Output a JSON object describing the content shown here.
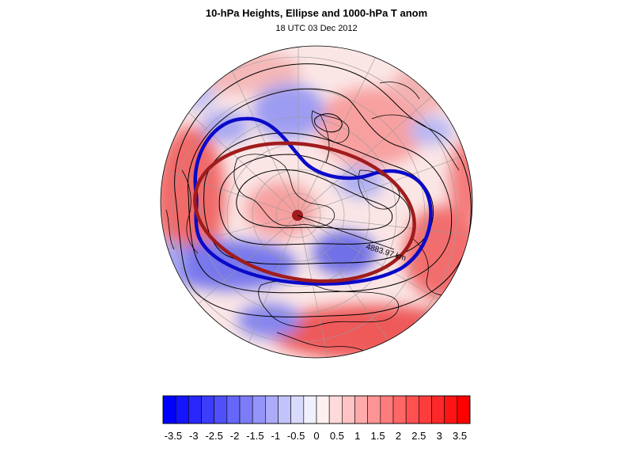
{
  "title": "10-hPa Heights, Ellipse and 1000-hPa T anom",
  "subtitle": "18 UTC 03 Dec 2012",
  "map": {
    "projection": "north-polar-stereographic",
    "ellipse_label": "4883.97 km",
    "colors": {
      "highlighted_contour": "#0a0ac8",
      "ellipse": "#a01c1c",
      "ellipse_center": "#a01c1c",
      "contour": "#000000",
      "coastline": "#000000",
      "gridline": "#9a9a9a"
    }
  },
  "colorbar": {
    "tick_labels": [
      "-3.5",
      "-3",
      "-2.5",
      "-2",
      "-1.5",
      "-1",
      "-0.5",
      "0",
      "0.5",
      "1",
      "1.5",
      "2",
      "2.5",
      "3",
      "3.5"
    ],
    "colors": [
      "#0000ff",
      "#1414fe",
      "#2828fc",
      "#3c3cfb",
      "#5050f9",
      "#6666f8",
      "#7c7cf9",
      "#9494fa",
      "#ababfa",
      "#c3c3fb",
      "#dadafd",
      "#f0f0fe",
      "#fff0f0",
      "#ffdada",
      "#ffc3c3",
      "#ffabab",
      "#ff9494",
      "#ff7c7c",
      "#ff6666",
      "#ff5050",
      "#ff3c3c",
      "#ff2828",
      "#ff1414",
      "#ff0000"
    ]
  }
}
